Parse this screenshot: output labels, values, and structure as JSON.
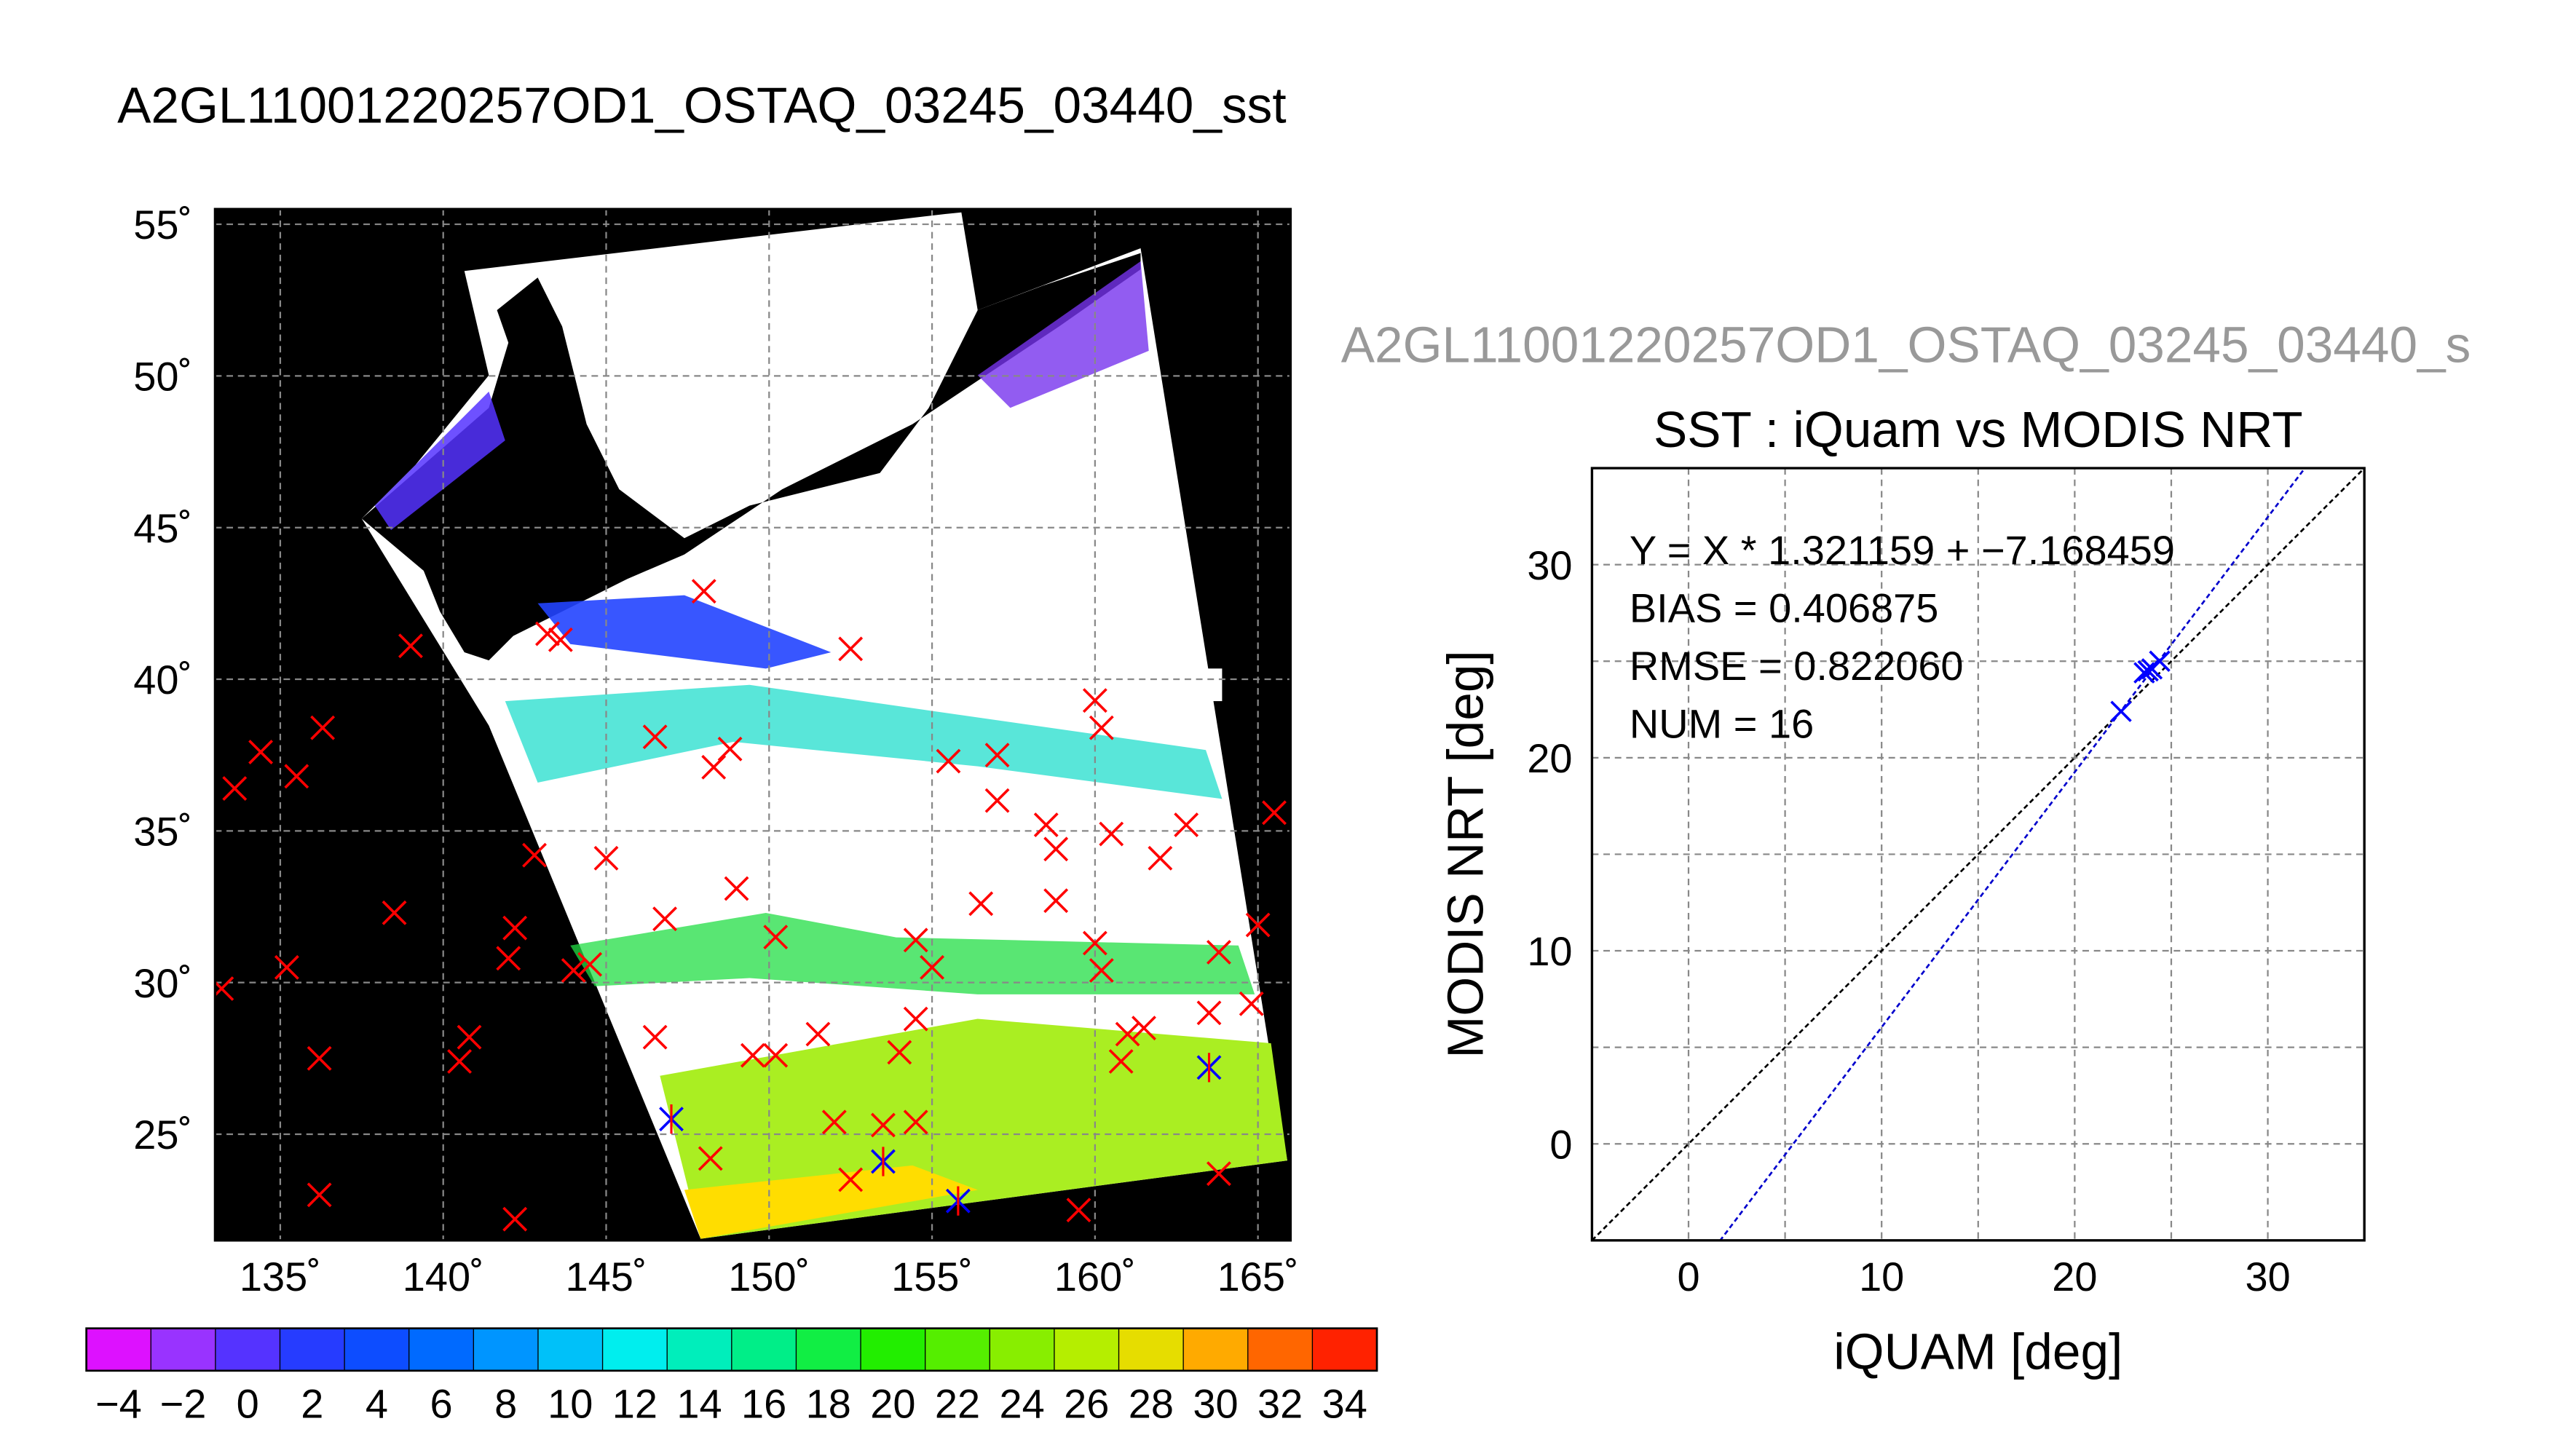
{
  "map_title": "A2GL11001220257OD1_OSTAQ_03245_03440_sst",
  "scatter_subtitle": "A2GL11001220257OD1_OSTAQ_03245_03440_s",
  "colors": {
    "land": "#000000",
    "cloud": "#ffffff",
    "marker_red": "#ff0000",
    "marker_blue": "#0000ff",
    "fit_line": "#0000cc"
  },
  "chart_data": [
    {
      "type": "map",
      "lat_ticks": [
        "55˚",
        "50˚",
        "45˚",
        "40˚",
        "35˚",
        "30˚",
        "25˚"
      ],
      "lon_ticks": [
        "135˚",
        "140˚",
        "145˚",
        "150˚",
        "155˚",
        "160˚",
        "165˚"
      ],
      "lat_range": [
        21.5,
        55.5
      ],
      "lon_range": [
        133,
        166
      ],
      "grid": true,
      "red_markers": [
        [
          133.2,
          29.8
        ],
        [
          133.6,
          36.4
        ],
        [
          134.4,
          37.6
        ],
        [
          135.2,
          30.5
        ],
        [
          135.5,
          36.8
        ],
        [
          136.2,
          27.5
        ],
        [
          136.3,
          38.4
        ],
        [
          136.2,
          23.0
        ],
        [
          138.5,
          32.3
        ],
        [
          139.0,
          41.1
        ],
        [
          140.5,
          27.4
        ],
        [
          140.8,
          28.2
        ],
        [
          142.0,
          30.8
        ],
        [
          142.2,
          31.8
        ],
        [
          142.2,
          22.2
        ],
        [
          142.8,
          34.2
        ],
        [
          143.2,
          41.5
        ],
        [
          143.6,
          41.3
        ],
        [
          144.0,
          30.4
        ],
        [
          144.5,
          30.6
        ],
        [
          145.0,
          34.1
        ],
        [
          146.5,
          38.1
        ],
        [
          146.5,
          28.2
        ],
        [
          146.8,
          32.1
        ],
        [
          148.0,
          42.9
        ],
        [
          148.2,
          24.2
        ],
        [
          148.3,
          37.1
        ],
        [
          148.8,
          37.7
        ],
        [
          149.0,
          33.1
        ],
        [
          149.5,
          27.6
        ],
        [
          150.2,
          27.6
        ],
        [
          150.2,
          31.5
        ],
        [
          151.5,
          28.3
        ],
        [
          152.0,
          25.4
        ],
        [
          152.5,
          41.0
        ],
        [
          152.5,
          23.5
        ],
        [
          153.5,
          25.3
        ],
        [
          154.0,
          27.7
        ],
        [
          154.5,
          28.8
        ],
        [
          154.5,
          31.4
        ],
        [
          154.5,
          25.4
        ],
        [
          155.0,
          30.5
        ],
        [
          155.5,
          37.3
        ],
        [
          156.5,
          32.6
        ],
        [
          157.0,
          36.0
        ],
        [
          157.0,
          37.5
        ],
        [
          158.5,
          35.2
        ],
        [
          158.8,
          34.4
        ],
        [
          158.8,
          32.7
        ],
        [
          159.5,
          22.5
        ],
        [
          160.0,
          31.3
        ],
        [
          160.0,
          39.3
        ],
        [
          160.2,
          38.4
        ],
        [
          160.2,
          30.4
        ],
        [
          160.5,
          34.9
        ],
        [
          160.8,
          27.4
        ],
        [
          161.0,
          28.3
        ],
        [
          161.5,
          28.5
        ],
        [
          162.0,
          34.1
        ],
        [
          162.8,
          35.2
        ],
        [
          163.5,
          29.0
        ],
        [
          163.8,
          31.0
        ],
        [
          163.8,
          23.7
        ],
        [
          164.8,
          29.3
        ],
        [
          165.0,
          31.9
        ],
        [
          165.5,
          35.6
        ]
      ],
      "blue_markers": [
        [
          147.0,
          25.5
        ],
        [
          153.5,
          24.1
        ],
        [
          155.8,
          22.8
        ],
        [
          163.5,
          27.2
        ]
      ],
      "colorbar": {
        "min": -5,
        "max": 35,
        "step": 2,
        "tick_labels": [
          "−4",
          "−2",
          "0",
          "2",
          "4",
          "6",
          "8",
          "10",
          "12",
          "14",
          "16",
          "18",
          "20",
          "22",
          "24",
          "26",
          "28",
          "30",
          "32",
          "34"
        ]
      }
    },
    {
      "type": "scatter",
      "title": "SST : iQuam vs MODIS NRT",
      "xlabel": "iQUAM [deg]",
      "ylabel": "MODIS NRT [deg]",
      "xlim": [
        -5,
        35
      ],
      "ylim": [
        -5,
        35
      ],
      "x_ticks": [
        "0",
        "10",
        "20",
        "30"
      ],
      "y_ticks": [
        "0",
        "10",
        "20",
        "30"
      ],
      "grid": true,
      "annotations": [
        "Y = X * 1.321159 + −7.168459",
        "BIAS = 0.406875",
        "RMSE = 0.822060",
        "NUM = 16"
      ],
      "fit": {
        "slope": 1.321159,
        "intercept": -7.168459
      },
      "points": [
        [
          22.4,
          22.4
        ],
        [
          23.6,
          24.4
        ],
        [
          24.0,
          24.6
        ],
        [
          24.4,
          25.0
        ],
        [
          23.8,
          24.5
        ]
      ]
    }
  ]
}
